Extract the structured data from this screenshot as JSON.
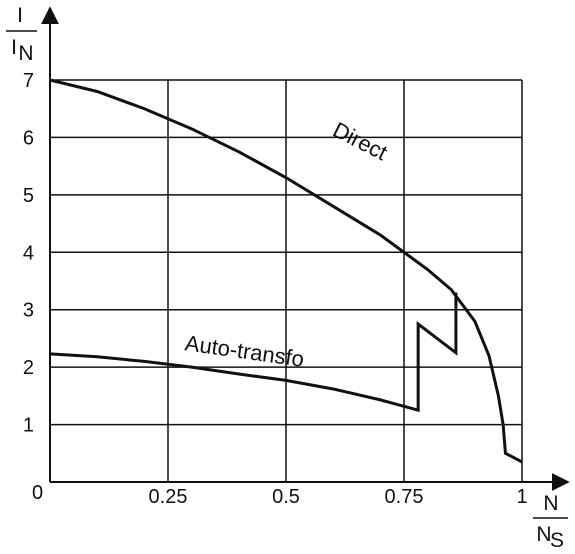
{
  "chart_data": {
    "type": "line",
    "ylabel": {
      "top": "I",
      "bottom": "I",
      "sub": "N"
    },
    "xlabel": {
      "top": "N",
      "bottom": "N",
      "sub": "S"
    },
    "xlim": [
      0,
      1
    ],
    "ylim": [
      0,
      7
    ],
    "x_ticks": [
      {
        "value": 0.25,
        "label": "0.25"
      },
      {
        "value": 0.5,
        "label": "0.5"
      },
      {
        "value": 0.75,
        "label": "0.75"
      },
      {
        "value": 1,
        "label": "1"
      }
    ],
    "y_ticks": [
      {
        "value": 1,
        "label": "1"
      },
      {
        "value": 2,
        "label": "2"
      },
      {
        "value": 3,
        "label": "3"
      },
      {
        "value": 4,
        "label": "4"
      },
      {
        "value": 5,
        "label": "5"
      },
      {
        "value": 6,
        "label": "6"
      },
      {
        "value": 7,
        "label": "7"
      }
    ],
    "origin_label": "0",
    "grid": true,
    "series": [
      {
        "name": "Direct",
        "points": [
          [
            0,
            7
          ],
          [
            0.1,
            6.8
          ],
          [
            0.2,
            6.5
          ],
          [
            0.3,
            6.15
          ],
          [
            0.4,
            5.75
          ],
          [
            0.5,
            5.3
          ],
          [
            0.6,
            4.8
          ],
          [
            0.7,
            4.3
          ],
          [
            0.8,
            3.7
          ],
          [
            0.85,
            3.35
          ],
          [
            0.9,
            2.8
          ],
          [
            0.93,
            2.2
          ],
          [
            0.95,
            1.5
          ],
          [
            0.96,
            1.0
          ],
          [
            0.965,
            0.5
          ],
          [
            1.0,
            0.35
          ]
        ]
      },
      {
        "name": "Auto-transfo",
        "points": [
          [
            0,
            2.23
          ],
          [
            0.1,
            2.18
          ],
          [
            0.2,
            2.1
          ],
          [
            0.3,
            2.0
          ],
          [
            0.4,
            1.88
          ],
          [
            0.5,
            1.77
          ],
          [
            0.6,
            1.62
          ],
          [
            0.7,
            1.43
          ],
          [
            0.78,
            1.25
          ],
          [
            0.78,
            2.75
          ],
          [
            0.86,
            2.25
          ],
          [
            0.86,
            3.3
          ]
        ]
      }
    ],
    "annotations": [
      {
        "text": "Direct",
        "x": 0.65,
        "y": 5.82,
        "rotate": 27
      },
      {
        "text": "Auto-transfo",
        "x": 0.41,
        "y": 2.15,
        "rotate": 8
      }
    ]
  }
}
